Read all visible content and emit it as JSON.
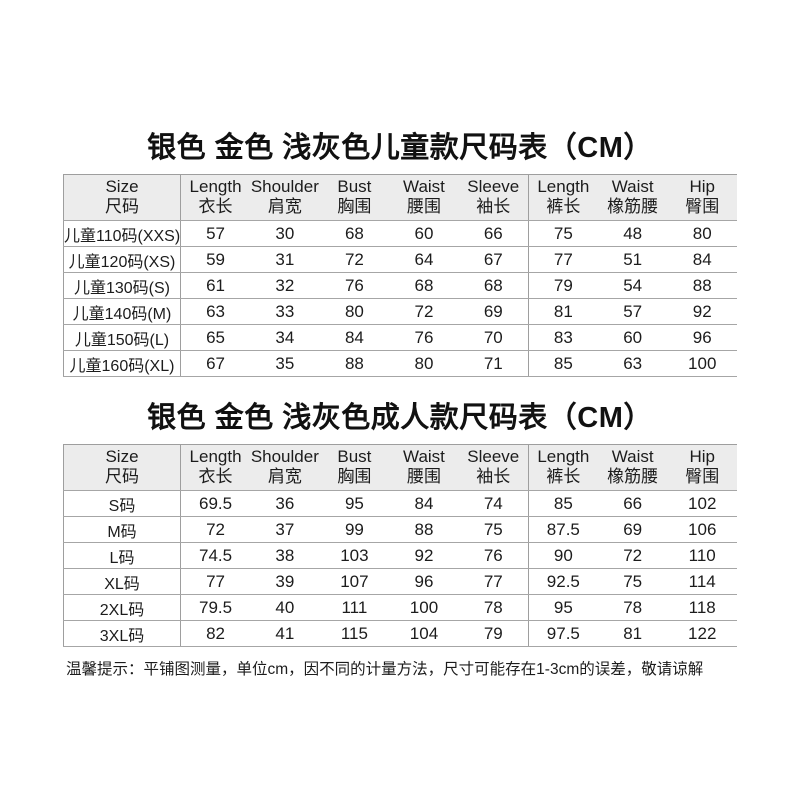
{
  "colors": {
    "background": "#ffffff",
    "header_band": "#ececec",
    "grid_line": "#9e9e9e",
    "text": "#1c1c1c"
  },
  "kids": {
    "title": "银色 金色 浅灰色儿童款尺码表（CM）",
    "columns": [
      {
        "en": "Size",
        "zh": "尺码"
      },
      {
        "en": "Length",
        "zh": "衣长"
      },
      {
        "en": "Shoulder",
        "zh": "肩宽"
      },
      {
        "en": "Bust",
        "zh": "胸围"
      },
      {
        "en": "Waist",
        "zh": "腰围"
      },
      {
        "en": "Sleeve",
        "zh": "袖长"
      },
      {
        "en": "Length",
        "zh": "裤长"
      },
      {
        "en": "Waist",
        "zh": "橡筋腰"
      },
      {
        "en": "Hip",
        "zh": "臀围"
      }
    ],
    "rows": [
      [
        "儿童110码(XXS)",
        "57",
        "30",
        "68",
        "60",
        "66",
        "75",
        "48",
        "80"
      ],
      [
        "儿童120码(XS)",
        "59",
        "31",
        "72",
        "64",
        "67",
        "77",
        "51",
        "84"
      ],
      [
        "儿童130码(S)",
        "61",
        "32",
        "76",
        "68",
        "68",
        "79",
        "54",
        "88"
      ],
      [
        "儿童140码(M)",
        "63",
        "33",
        "80",
        "72",
        "69",
        "81",
        "57",
        "92"
      ],
      [
        "儿童150码(L)",
        "65",
        "34",
        "84",
        "76",
        "70",
        "83",
        "60",
        "96"
      ],
      [
        "儿童160码(XL)",
        "67",
        "35",
        "88",
        "80",
        "71",
        "85",
        "63",
        "100"
      ]
    ]
  },
  "adult": {
    "title": "银色 金色 浅灰色成人款尺码表（CM）",
    "columns": [
      {
        "en": "Size",
        "zh": "尺码"
      },
      {
        "en": "Length",
        "zh": "衣长"
      },
      {
        "en": "Shoulder",
        "zh": "肩宽"
      },
      {
        "en": "Bust",
        "zh": "胸围"
      },
      {
        "en": "Waist",
        "zh": "腰围"
      },
      {
        "en": "Sleeve",
        "zh": "袖长"
      },
      {
        "en": "Length",
        "zh": "裤长"
      },
      {
        "en": "Waist",
        "zh": "橡筋腰"
      },
      {
        "en": "Hip",
        "zh": "臀围"
      }
    ],
    "rows": [
      [
        "S码",
        "69.5",
        "36",
        "95",
        "84",
        "74",
        "85",
        "66",
        "102"
      ],
      [
        "M码",
        "72",
        "37",
        "99",
        "88",
        "75",
        "87.5",
        "69",
        "106"
      ],
      [
        "L码",
        "74.5",
        "38",
        "103",
        "92",
        "76",
        "90",
        "72",
        "110"
      ],
      [
        "XL码",
        "77",
        "39",
        "107",
        "96",
        "77",
        "92.5",
        "75",
        "114"
      ],
      [
        "2XL码",
        "79.5",
        "40",
        "111",
        "100",
        "78",
        "95",
        "78",
        "118"
      ],
      [
        "3XL码",
        "82",
        "41",
        "115",
        "104",
        "79",
        "97.5",
        "81",
        "122"
      ]
    ]
  },
  "note": "温馨提示：平铺图测量，单位cm，因不同的计量方法，尺寸可能存在1-3cm的误差，敬请谅解"
}
